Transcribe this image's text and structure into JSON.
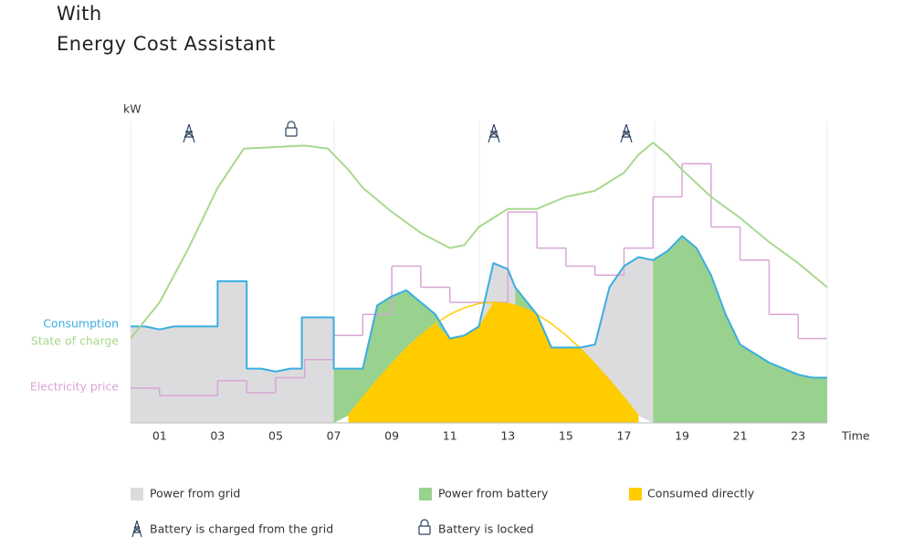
{
  "chart_data": {
    "type": "area",
    "title": "With",
    "subtitle": "Energy Cost Assistant",
    "y_label": "kW",
    "x_label": "Time",
    "xlim": [
      0,
      24
    ],
    "xticks": [
      {
        "value": 1,
        "label": "01"
      },
      {
        "value": 3,
        "label": "03"
      },
      {
        "value": 5,
        "label": "05"
      },
      {
        "value": 7,
        "label": "07"
      },
      {
        "value": 9,
        "label": "09"
      },
      {
        "value": 11,
        "label": "11"
      },
      {
        "value": 13,
        "label": "13"
      },
      {
        "value": 15,
        "label": "15"
      },
      {
        "value": 17,
        "label": "17"
      },
      {
        "value": 19,
        "label": "19"
      },
      {
        "value": 21,
        "label": "21"
      },
      {
        "value": 23,
        "label": "23"
      }
    ],
    "ylim": [
      0,
      10
    ],
    "y2lim": [
      0,
      100
    ],
    "x": [
      0,
      0.5,
      1,
      1.5,
      2,
      2.5,
      3,
      3,
      3.5,
      4,
      4,
      4.5,
      5,
      5.5,
      5.9,
      5.9,
      6.5,
      7,
      7,
      7.5,
      8,
      8.5,
      9,
      9.5,
      10,
      10.5,
      11,
      11.5,
      12,
      12.5,
      13,
      13.25,
      13.25,
      13.5,
      14,
      14.5,
      15,
      15.5,
      16,
      16.5,
      17,
      17.5,
      18,
      18,
      18.5,
      19,
      19.5,
      20,
      20.5,
      21,
      21.5,
      22,
      22.5,
      23,
      23.5,
      24
    ],
    "series": [
      {
        "name": "Consumed directly",
        "kind": "area",
        "color": "#ffcc00",
        "values": [
          null,
          null,
          null,
          null,
          null,
          null,
          null,
          null,
          null,
          null,
          null,
          null,
          null,
          null,
          null,
          null,
          null,
          null,
          null,
          0.24,
          0.84,
          1.42,
          1.96,
          2.47,
          2.91,
          3.29,
          2.8,
          2.9,
          3.2,
          4.0,
          3.96,
          3.9,
          3.9,
          3.82,
          3.6,
          2.5,
          2.5,
          2.47,
          1.96,
          1.42,
          0.84,
          0.24,
          null,
          null,
          null,
          null,
          null,
          null,
          null,
          null,
          null,
          null,
          null,
          null,
          null,
          null
        ]
      },
      {
        "name": "Power from grid",
        "kind": "area",
        "color": "#dcdcdf",
        "values": [
          3.2,
          3.2,
          3.1,
          3.2,
          3.2,
          3.2,
          3.2,
          4.7,
          4.7,
          4.7,
          1.8,
          1.8,
          1.7,
          1.8,
          1.8,
          3.5,
          3.5,
          3.5,
          null,
          null,
          null,
          null,
          null,
          null,
          null,
          null,
          null,
          null,
          0,
          1.3,
          1.14,
          0.6,
          null,
          null,
          null,
          null,
          null,
          0.03,
          0.64,
          3.08,
          4.36,
          5.26,
          5.4,
          null,
          null,
          null,
          null,
          null,
          null,
          null,
          null,
          null,
          null,
          null,
          null,
          null
        ]
      },
      {
        "name": "Power from battery",
        "kind": "area",
        "color": "#99d18f",
        "values": [
          null,
          null,
          null,
          null,
          null,
          null,
          null,
          null,
          null,
          null,
          null,
          null,
          null,
          null,
          null,
          null,
          null,
          null,
          1.8,
          1.56,
          0.96,
          2.48,
          2.24,
          1.93,
          1.09,
          0.31,
          0,
          null,
          null,
          null,
          null,
          null,
          0.6,
          0.38,
          0,
          null,
          null,
          null,
          null,
          null,
          null,
          null,
          null,
          5.4,
          5.7,
          6.2,
          5.8,
          4.9,
          3.6,
          2.6,
          2.3,
          2.0,
          1.8,
          1.6,
          1.5,
          1.5
        ]
      },
      {
        "kind": "line",
        "color": "#ffcc00",
        "values": [
          null,
          null,
          null,
          null,
          null,
          null,
          null,
          null,
          null,
          null,
          null,
          null,
          null,
          null,
          null,
          null,
          null,
          null,
          null,
          0.24,
          0.84,
          1.42,
          1.96,
          2.47,
          2.91,
          3.29,
          3.6,
          3.82,
          3.96,
          4.0,
          3.96,
          3.9,
          3.9,
          3.82,
          3.6,
          3.29,
          2.91,
          2.47,
          1.96,
          1.42,
          0.84,
          0.24,
          null,
          null,
          null,
          null,
          null,
          null,
          null,
          null,
          null,
          null,
          null,
          null,
          null,
          null
        ]
      },
      {
        "name": "Consumption",
        "kind": "line",
        "color": "#3aaee0",
        "values": [
          3.2,
          3.2,
          3.1,
          3.2,
          3.2,
          3.2,
          3.2,
          4.7,
          4.7,
          4.7,
          1.8,
          1.8,
          1.7,
          1.8,
          1.8,
          3.5,
          3.5,
          3.5,
          1.8,
          1.8,
          1.8,
          3.9,
          4.2,
          4.4,
          4.0,
          3.6,
          2.8,
          2.9,
          3.2,
          5.3,
          5.1,
          4.5,
          4.5,
          4.2,
          3.6,
          2.5,
          2.5,
          2.5,
          2.6,
          4.5,
          5.2,
          5.5,
          5.4,
          5.4,
          5.7,
          6.2,
          5.8,
          4.9,
          3.6,
          2.6,
          2.3,
          2.0,
          1.8,
          1.6,
          1.5,
          1.5
        ]
      },
      {
        "name": "State of charge",
        "kind": "line",
        "axis": "y2",
        "color": "#a9d88f",
        "x": [
          0,
          1,
          2,
          3,
          3.9,
          5,
          6,
          6.8,
          7.5,
          8,
          9,
          10,
          11,
          11.5,
          12,
          12.5,
          13,
          14,
          15,
          16,
          17,
          17.5,
          18,
          18.5,
          19,
          20,
          21,
          22,
          23,
          24
        ],
        "values": [
          28,
          40,
          58,
          78,
          91,
          91.5,
          92,
          91,
          84,
          78,
          70,
          63,
          58,
          59,
          65,
          68,
          71,
          71,
          75,
          77,
          83,
          89,
          93,
          89,
          84,
          75,
          68,
          60,
          53,
          45
        ]
      },
      {
        "name": "Electricity price",
        "kind": "step",
        "axis": "y2",
        "color": "#d9a6d6",
        "x": [
          0,
          1,
          2,
          3,
          4,
          5,
          6,
          7,
          8,
          9,
          10,
          11,
          12,
          13,
          14,
          15,
          16,
          17,
          18,
          19,
          20,
          21,
          22,
          23
        ],
        "values": [
          11.5,
          9,
          9,
          14,
          10,
          15,
          21,
          29,
          36,
          52,
          45,
          40,
          40,
          70,
          58,
          52,
          49,
          58,
          75,
          86,
          65,
          54,
          36,
          28
        ]
      }
    ],
    "legend_notes": [
      "Battery is charged from the grid",
      "Battery is locked"
    ]
  }
}
